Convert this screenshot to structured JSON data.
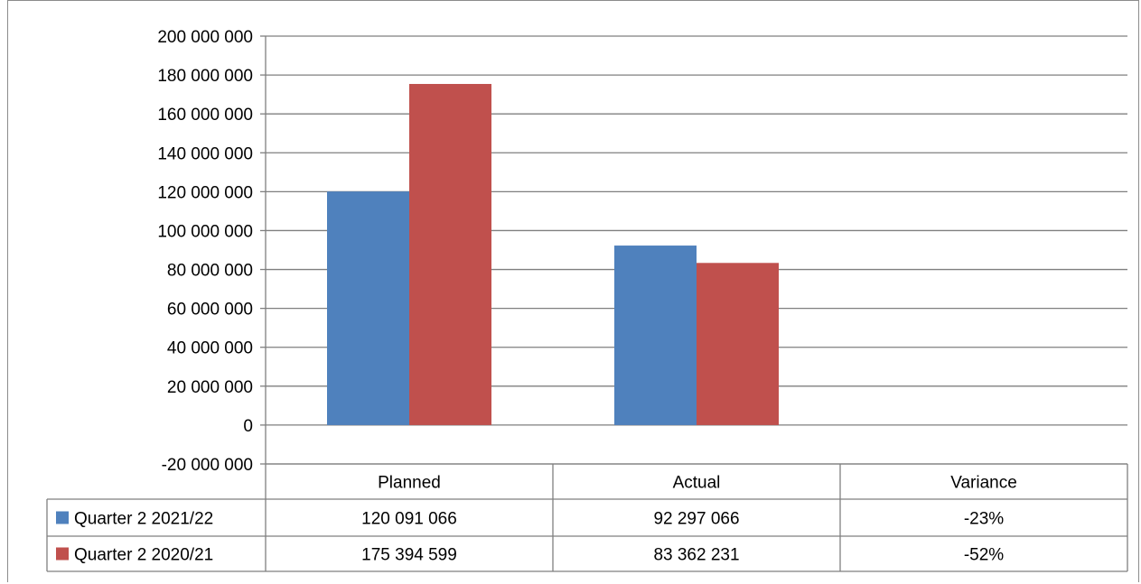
{
  "chart_data": {
    "type": "bar",
    "categories": [
      "Planned",
      "Actual",
      "Variance"
    ],
    "series": [
      {
        "name": "Quarter 2 2021/22",
        "color": "#4F81BD",
        "values": [
          120091066,
          92297066,
          null
        ],
        "table_values": [
          "120 091 066",
          "92 297 066",
          "-23%"
        ]
      },
      {
        "name": "Quarter 2 2020/21",
        "color": "#C0504D",
        "values": [
          175394599,
          83362231,
          null
        ],
        "table_values": [
          "175 394 599",
          "83 362 231",
          "-52%"
        ]
      }
    ],
    "ylim": [
      -20000000,
      200000000
    ],
    "yticks": [
      200000000,
      180000000,
      160000000,
      140000000,
      120000000,
      100000000,
      80000000,
      60000000,
      40000000,
      20000000,
      0,
      -20000000
    ],
    "ytick_labels": [
      "200 000 000",
      "180 000 000",
      "160 000 000",
      "140 000 000",
      "120 000 000",
      "100 000 000",
      "80 000 000",
      "60 000 000",
      "40 000 000",
      "20 000 000",
      "0",
      "-20 000 000"
    ],
    "grid": true,
    "legend": "data-table"
  }
}
